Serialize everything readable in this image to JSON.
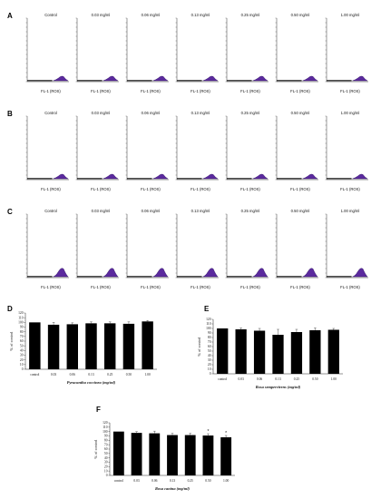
{
  "panel_letters": [
    "A",
    "B",
    "C",
    "D",
    "E",
    "F"
  ],
  "histogram_rows": [
    {
      "letter": "A",
      "conditions": [
        "Control",
        "0.03 mg/ml",
        "0.06 mg/ml",
        "0.13 mg/ml",
        "0.25 mg/ml",
        "0.50 mg/ml",
        "1.00 mg/ml"
      ],
      "xlabel": "FL-1 (ROS)"
    },
    {
      "letter": "B",
      "conditions": [
        "Control",
        "0.03 mg/ml",
        "0.06 mg/ml",
        "0.13 mg/ml",
        "0.25 mg/ml",
        "0.50 mg/ml",
        "1.00 mg/ml"
      ],
      "xlabel": "FL-1 (ROS)"
    },
    {
      "letter": "C",
      "conditions": [
        "Control",
        "0.03 mg/ml",
        "0.06 mg/ml",
        "0.13 mg/ml",
        "0.25 mg/ml",
        "0.50 mg/ml",
        "1.00 mg/ml"
      ],
      "xlabel": "FL-1 (ROS)"
    }
  ],
  "histogram_fill_color": "#5b2a9e",
  "chart_data": [
    {
      "type": "bar",
      "panel": "D",
      "categories": [
        "control",
        "0.03",
        "0.06",
        "0.13",
        "0.25",
        "0.50",
        "1.00"
      ],
      "values": [
        100,
        95,
        96,
        98,
        98,
        97,
        102
      ],
      "errors": [
        0,
        5,
        3,
        3,
        3,
        4,
        2
      ],
      "significance": [
        "",
        "",
        "",
        "",
        "",
        "",
        ""
      ],
      "xlabel": "Pyracantha coccinea (mg/ml)",
      "ylabel": "% of control",
      "ylim": [
        0,
        120
      ],
      "yticks": [
        "0",
        "10",
        "20",
        "30",
        "40",
        "50",
        "60",
        "70",
        "80",
        "90",
        "100",
        "110",
        "120"
      ]
    },
    {
      "type": "bar",
      "panel": "E",
      "categories": [
        "control",
        "0.03",
        "0.06",
        "0.13",
        "0.25",
        "0.50",
        "1.00"
      ],
      "values": [
        100,
        98,
        95,
        86,
        92,
        96,
        97
      ],
      "errors": [
        0,
        3,
        5,
        12,
        6,
        5,
        3
      ],
      "significance": [
        "",
        "",
        "",
        "",
        "",
        "",
        ""
      ],
      "xlabel": "Rosa sempervirens (mg/ml)",
      "ylabel": "% of control",
      "ylim": [
        0,
        120
      ],
      "yticks": [
        "0",
        "10",
        "20",
        "30",
        "40",
        "50",
        "60",
        "70",
        "80",
        "90",
        "100",
        "110",
        "120"
      ]
    },
    {
      "type": "bar",
      "panel": "F",
      "categories": [
        "control",
        "0.03",
        "0.06",
        "0.13",
        "0.25",
        "0.50",
        "1.00"
      ],
      "values": [
        100,
        97,
        96,
        92,
        92,
        91,
        87
      ],
      "errors": [
        0,
        3,
        5,
        4,
        4,
        4,
        4
      ],
      "significance": [
        "",
        "",
        "",
        "",
        "",
        "*",
        "*"
      ],
      "xlabel": "Rosa canina (mg/ml)",
      "ylabel": "% of control",
      "ylim": [
        0,
        120
      ],
      "yticks": [
        "0",
        "10",
        "20",
        "30",
        "40",
        "50",
        "60",
        "70",
        "80",
        "90",
        "100",
        "110",
        "120"
      ]
    }
  ]
}
